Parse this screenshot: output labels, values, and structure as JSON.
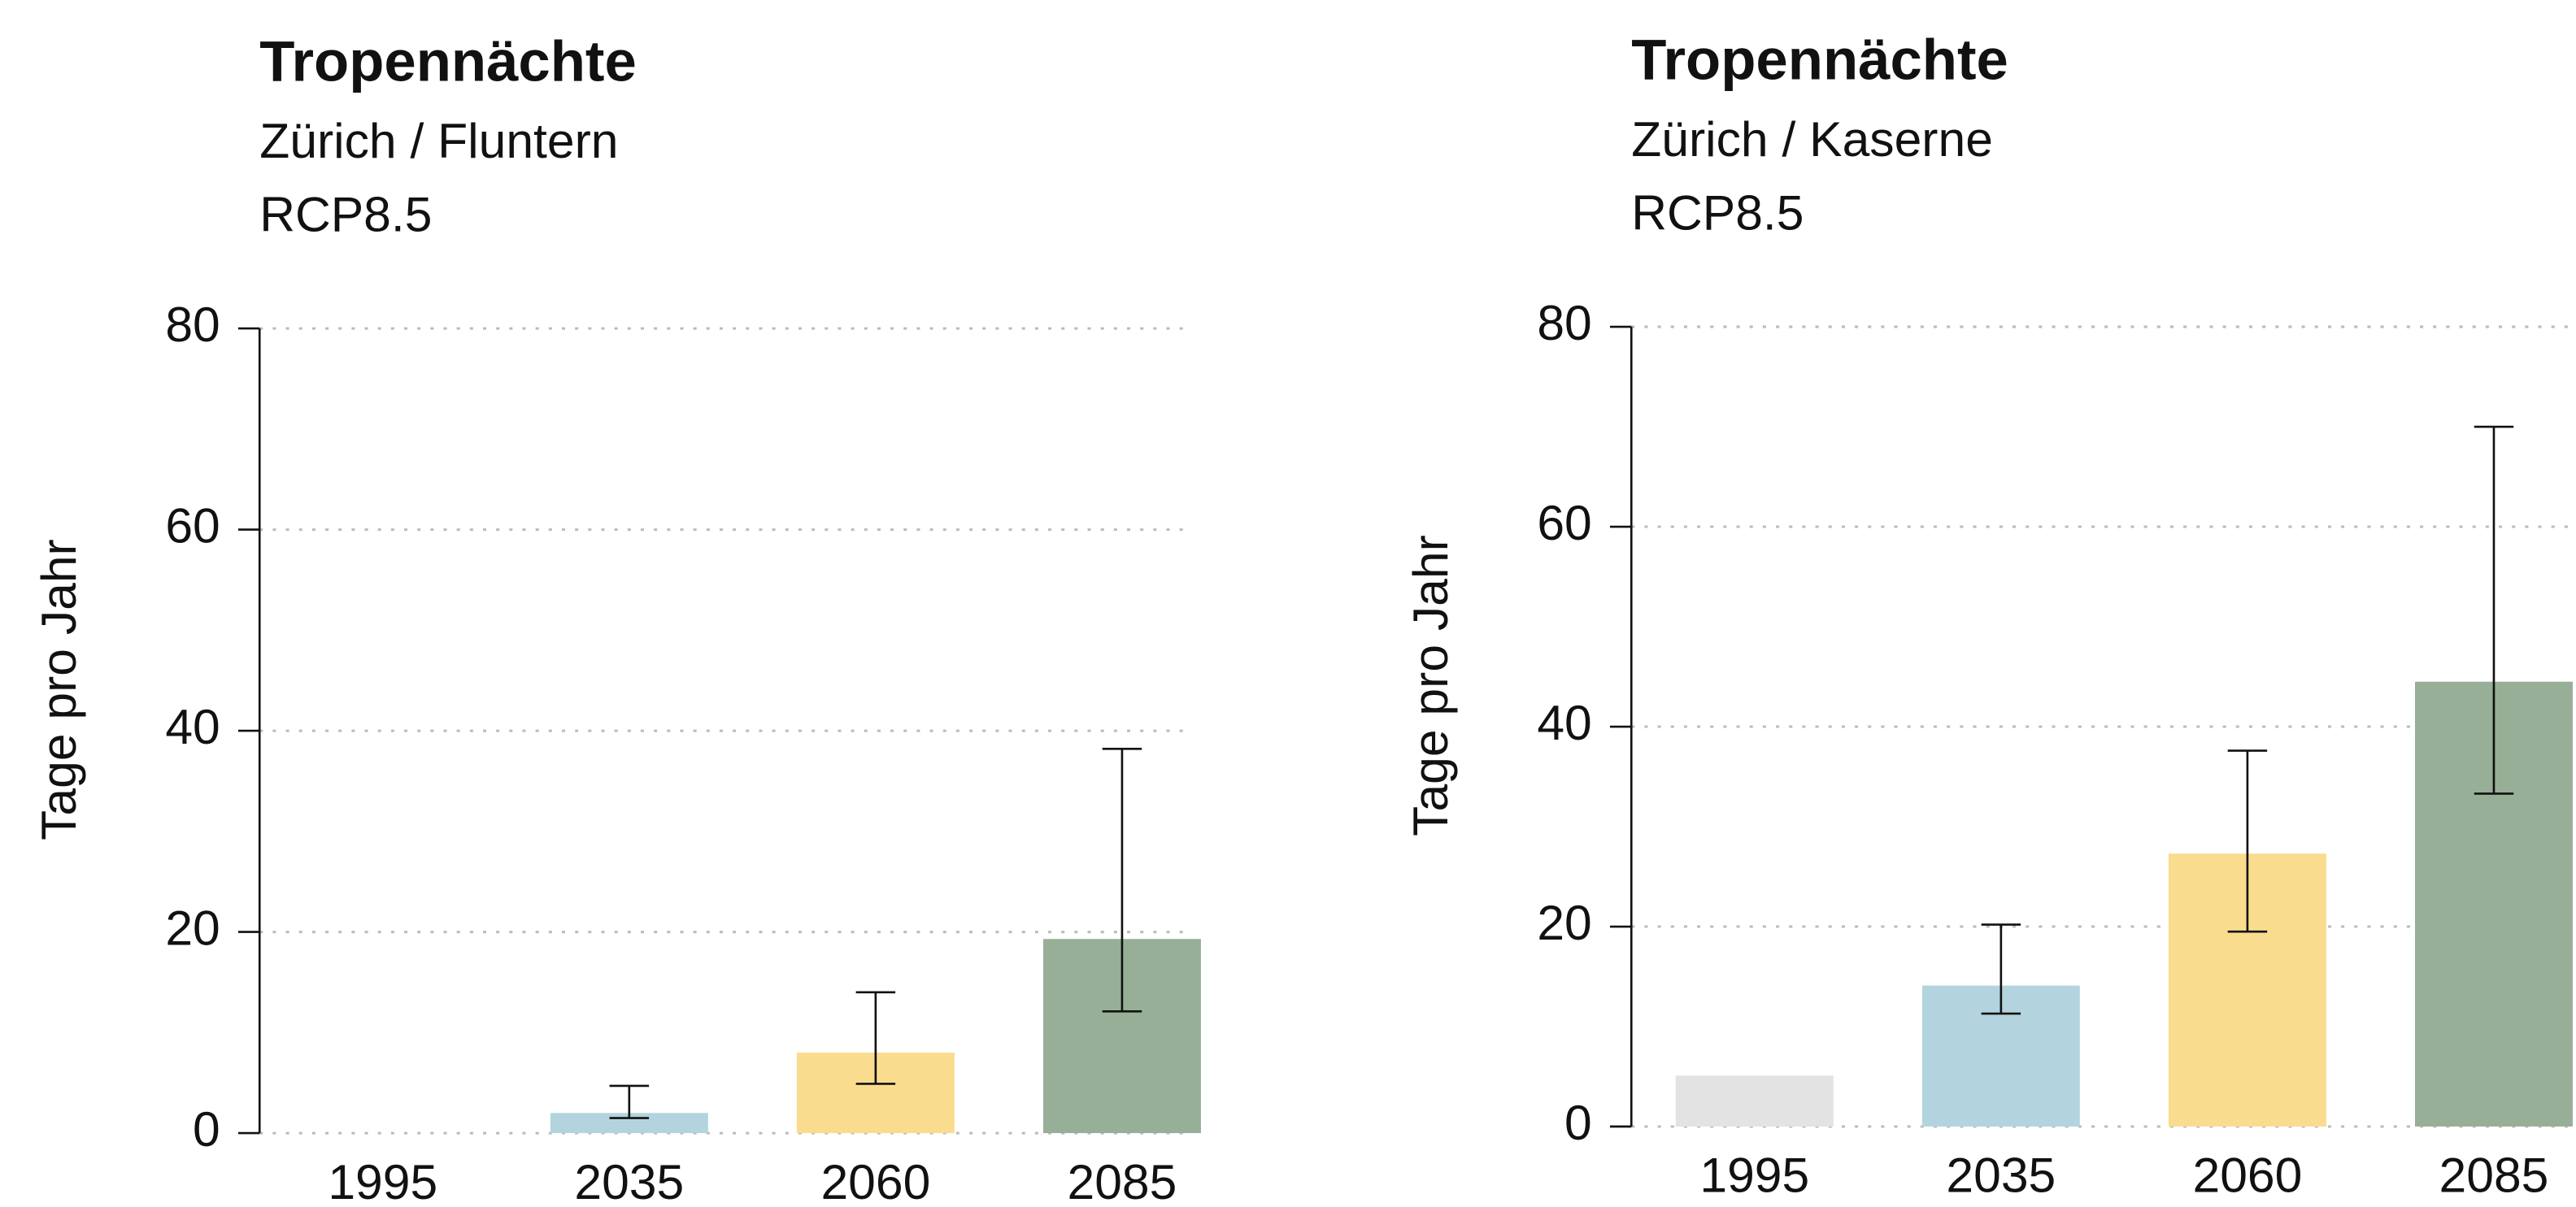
{
  "chart_data": [
    {
      "type": "bar",
      "title": "Tropennächte",
      "subtitle": "Zürich / Fluntern",
      "scenario": "RCP8.5",
      "y_label": "Tage pro Jahr",
      "categories": [
        "1995",
        "2035",
        "2060",
        "2085"
      ],
      "values": [
        0,
        2,
        8,
        19.3
      ],
      "ranges": [
        null,
        [
          1.5,
          4.7
        ],
        [
          4.9,
          14
        ],
        [
          12.1,
          38.2
        ]
      ],
      "colors": [
        "#e3e3e3",
        "#b3d4de",
        "#f9dc8e",
        "#97af96"
      ],
      "ylim": [
        0,
        80
      ],
      "yticks": [
        0,
        20,
        40,
        60,
        80
      ],
      "grid": true
    },
    {
      "type": "bar",
      "title": "Tropennächte",
      "subtitle": "Zürich / Kaserne",
      "scenario": "RCP8.5",
      "y_label": "Tage pro Jahr",
      "categories": [
        "1995",
        "2035",
        "2060",
        "2085"
      ],
      "values": [
        5.1,
        14.1,
        27.3,
        44.5
      ],
      "ranges": [
        null,
        [
          11.3,
          20.2
        ],
        [
          19.5,
          37.6
        ],
        [
          33.3,
          70
        ]
      ],
      "colors": [
        "#e3e3e3",
        "#b3d4de",
        "#f9dc8e",
        "#97af96"
      ],
      "ylim": [
        0,
        80
      ],
      "yticks": [
        0,
        20,
        40,
        60,
        80
      ],
      "grid": true
    }
  ]
}
